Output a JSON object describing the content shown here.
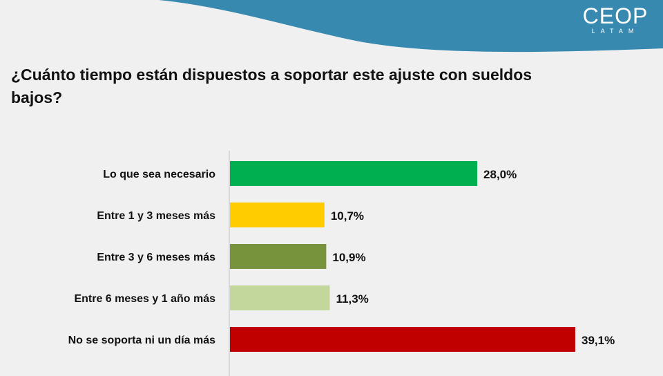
{
  "header": {
    "logo_text": "CEOP",
    "logo_subtext": "LATAM",
    "band_color": "#3889b0"
  },
  "title": "¿Cuánto tiempo están dispuestos a soportar este ajuste con sueldos bajos?",
  "chart_data": {
    "type": "bar",
    "orientation": "horizontal",
    "categories": [
      "Lo que sea necesario",
      "Entre 1 y 3 meses más",
      "Entre 3 y 6 meses más",
      "Entre 6 meses y 1 año más",
      "No se soporta ni un día más"
    ],
    "values": [
      28.0,
      10.7,
      10.9,
      11.3,
      39.1
    ],
    "labels": [
      "28,0%",
      "10,7%",
      "10,9%",
      "11,3%",
      "39,1%"
    ],
    "colors": [
      "#00b050",
      "#ffcc00",
      "#77933c",
      "#c3d69b",
      "#c00000"
    ],
    "xlim": [
      0,
      39.1
    ],
    "grid": false,
    "legend": "none"
  }
}
